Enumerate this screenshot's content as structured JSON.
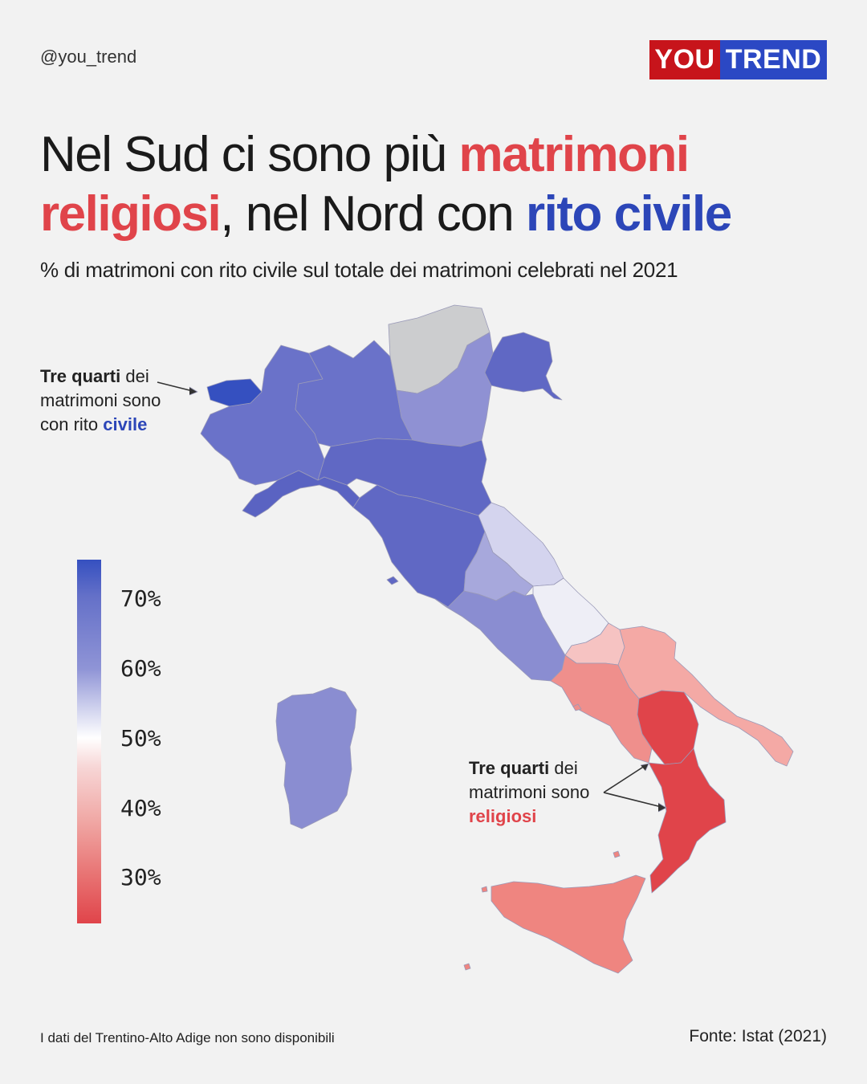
{
  "header": {
    "handle": "@you_trend",
    "logo_left": "YOU",
    "logo_right": "TREND"
  },
  "title": {
    "part1": "Nel Sud ci sono più ",
    "highlight1": "matrimoni religiosi",
    "part2": ", nel Nord con ",
    "highlight2": "rito civile"
  },
  "subtitle": "% di matrimoni con rito civile sul totale dei matrimoni celebrati nel 2021",
  "annotations": {
    "north": {
      "bold": "Tre quarti",
      "rest1": " dei",
      "line2": "matrimoni sono",
      "line3a": "con rito ",
      "line3b": "civile"
    },
    "south": {
      "bold": "Tre quarti",
      "rest1": " dei",
      "line2": "matrimoni sono",
      "line3": "religiosi"
    }
  },
  "legend": {
    "ticks": [
      "70%",
      "60%",
      "50%",
      "40%",
      "30%"
    ],
    "colors": {
      "high": "#3550c0",
      "mid": "#ffffff",
      "low": "#e0444a"
    }
  },
  "regions": [
    {
      "name": "Valle d'Aosta",
      "color": "#3550c0"
    },
    {
      "name": "Piemonte",
      "color": "#6a72c9"
    },
    {
      "name": "Lombardia",
      "color": "#6a72c9"
    },
    {
      "name": "Trentino-Alto Adige",
      "color": "#cccdcf"
    },
    {
      "name": "Veneto",
      "color": "#8f91d3"
    },
    {
      "name": "Friuli-Venezia Giulia",
      "color": "#6068c4"
    },
    {
      "name": "Liguria",
      "color": "#5a63c2"
    },
    {
      "name": "Emilia-Romagna",
      "color": "#6068c4"
    },
    {
      "name": "Toscana",
      "color": "#6068c4"
    },
    {
      "name": "Umbria",
      "color": "#a7a8dc"
    },
    {
      "name": "Marche",
      "color": "#d4d4ee"
    },
    {
      "name": "Lazio",
      "color": "#8a8dd1"
    },
    {
      "name": "Abruzzo",
      "color": "#eeeef6"
    },
    {
      "name": "Molise",
      "color": "#f6c3c2"
    },
    {
      "name": "Campania",
      "color": "#ef8f8c"
    },
    {
      "name": "Puglia",
      "color": "#f4a9a5"
    },
    {
      "name": "Basilicata",
      "color": "#e0444a"
    },
    {
      "name": "Calabria",
      "color": "#e0444a"
    },
    {
      "name": "Sicilia",
      "color": "#ef8580"
    },
    {
      "name": "Sardegna",
      "color": "#8a8dd1"
    }
  ],
  "footer": {
    "note": "I dati del Trentino-Alto Adige non sono disponibili",
    "source": "Fonte: Istat (2021)"
  }
}
